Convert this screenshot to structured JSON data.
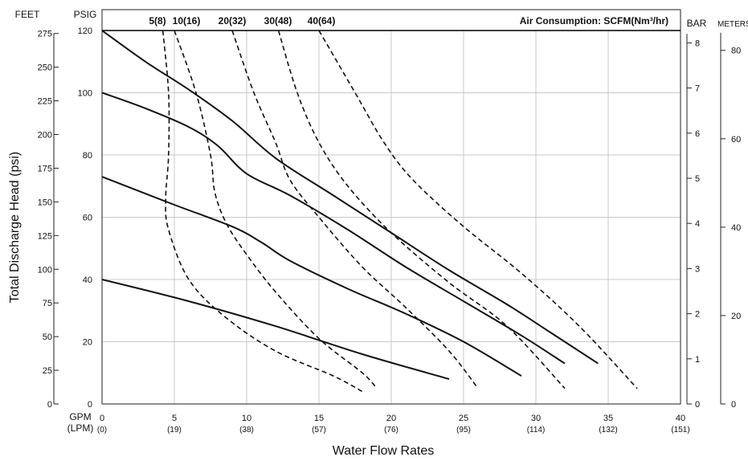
{
  "chart_data": {
    "type": "line",
    "title": "",
    "xlabel": "Water Flow Rates",
    "ylabel": "Total Discharge Head (psi)",
    "air_consumption_label": "Air Consumption: SCFM(Nm³/hr)",
    "axis_units": {
      "x_primary": "GPM",
      "x_secondary": "(LPM)",
      "left_outer": "FEET",
      "left_inner": "PSIG",
      "right_inner": "BAR",
      "right_outer": "METERS"
    },
    "xlim": [
      0,
      40
    ],
    "ylim": [
      0,
      120
    ],
    "x_ticks": [
      0,
      5,
      10,
      15,
      20,
      25,
      30,
      35,
      40
    ],
    "x_ticks_secondary": [
      "(0)",
      "(19)",
      "(38)",
      "(57)",
      "(76)",
      "(95)",
      "(114)",
      "(132)",
      "(151)"
    ],
    "psig_ticks": [
      0,
      20,
      40,
      60,
      80,
      100,
      120
    ],
    "feet_ticks": [
      0,
      25,
      50,
      75,
      100,
      125,
      150,
      175,
      200,
      225,
      250,
      275
    ],
    "bar_ticks": [
      0,
      1,
      2,
      3,
      4,
      5,
      6,
      7,
      8
    ],
    "meters_ticks": [
      0,
      20,
      40,
      60,
      80
    ],
    "grid": true,
    "pump_curves": [
      {
        "style": "solid",
        "points": [
          [
            0,
            120
          ],
          [
            3,
            110
          ],
          [
            6,
            101
          ],
          [
            9,
            91
          ],
          [
            12,
            79
          ],
          [
            16,
            67
          ],
          [
            20,
            55
          ],
          [
            24,
            43
          ],
          [
            28,
            32
          ],
          [
            31,
            23
          ],
          [
            34.3,
            13
          ]
        ]
      },
      {
        "style": "solid",
        "points": [
          [
            0,
            100
          ],
          [
            3,
            95
          ],
          [
            6,
            89
          ],
          [
            8,
            83
          ],
          [
            10,
            74
          ],
          [
            13,
            67
          ],
          [
            17,
            56
          ],
          [
            21,
            44
          ],
          [
            25,
            33
          ],
          [
            29,
            22
          ],
          [
            32,
            13
          ]
        ]
      },
      {
        "style": "solid",
        "points": [
          [
            0,
            73
          ],
          [
            5,
            64
          ],
          [
            9,
            57
          ],
          [
            11,
            52
          ],
          [
            13,
            46
          ],
          [
            17,
            37
          ],
          [
            21,
            29
          ],
          [
            25,
            20
          ],
          [
            29,
            9
          ]
        ]
      },
      {
        "style": "solid",
        "points": [
          [
            0,
            40
          ],
          [
            6,
            33
          ],
          [
            12,
            25
          ],
          [
            18,
            16
          ],
          [
            24,
            8
          ]
        ]
      }
    ],
    "air_consumption_curves": [
      {
        "label": "5(8)",
        "points": [
          [
            4.2,
            120
          ],
          [
            4.6,
            100
          ],
          [
            4.6,
            80
          ],
          [
            4.4,
            66
          ],
          [
            4.6,
            56
          ],
          [
            6,
            40
          ],
          [
            8.5,
            28
          ],
          [
            12,
            17
          ],
          [
            16,
            9
          ],
          [
            18,
            4
          ]
        ]
      },
      {
        "label": "10(16)",
        "points": [
          [
            5,
            120
          ],
          [
            6.5,
            100
          ],
          [
            7.5,
            80
          ],
          [
            7.8,
            68
          ],
          [
            8.6,
            58
          ],
          [
            10,
            48
          ],
          [
            12,
            36
          ],
          [
            15,
            21
          ],
          [
            18,
            10
          ],
          [
            19,
            5
          ]
        ]
      },
      {
        "label": "20(32)",
        "points": [
          [
            9,
            120
          ],
          [
            10.5,
            100
          ],
          [
            12,
            84
          ],
          [
            13,
            72
          ],
          [
            15,
            60
          ],
          [
            18,
            44
          ],
          [
            21,
            31
          ],
          [
            24,
            17
          ],
          [
            26,
            5
          ]
        ]
      },
      {
        "label": "30(48)",
        "points": [
          [
            12.2,
            120
          ],
          [
            13.5,
            100
          ],
          [
            15,
            84
          ],
          [
            17,
            70
          ],
          [
            20,
            55
          ],
          [
            24,
            39
          ],
          [
            28,
            25
          ],
          [
            32,
            5
          ]
        ]
      },
      {
        "label": "40(64)",
        "points": [
          [
            15,
            120
          ],
          [
            17.5,
            100
          ],
          [
            19.5,
            84
          ],
          [
            21.5,
            72
          ],
          [
            25,
            57
          ],
          [
            29,
            42
          ],
          [
            33,
            25
          ],
          [
            37,
            5
          ]
        ]
      }
    ]
  }
}
